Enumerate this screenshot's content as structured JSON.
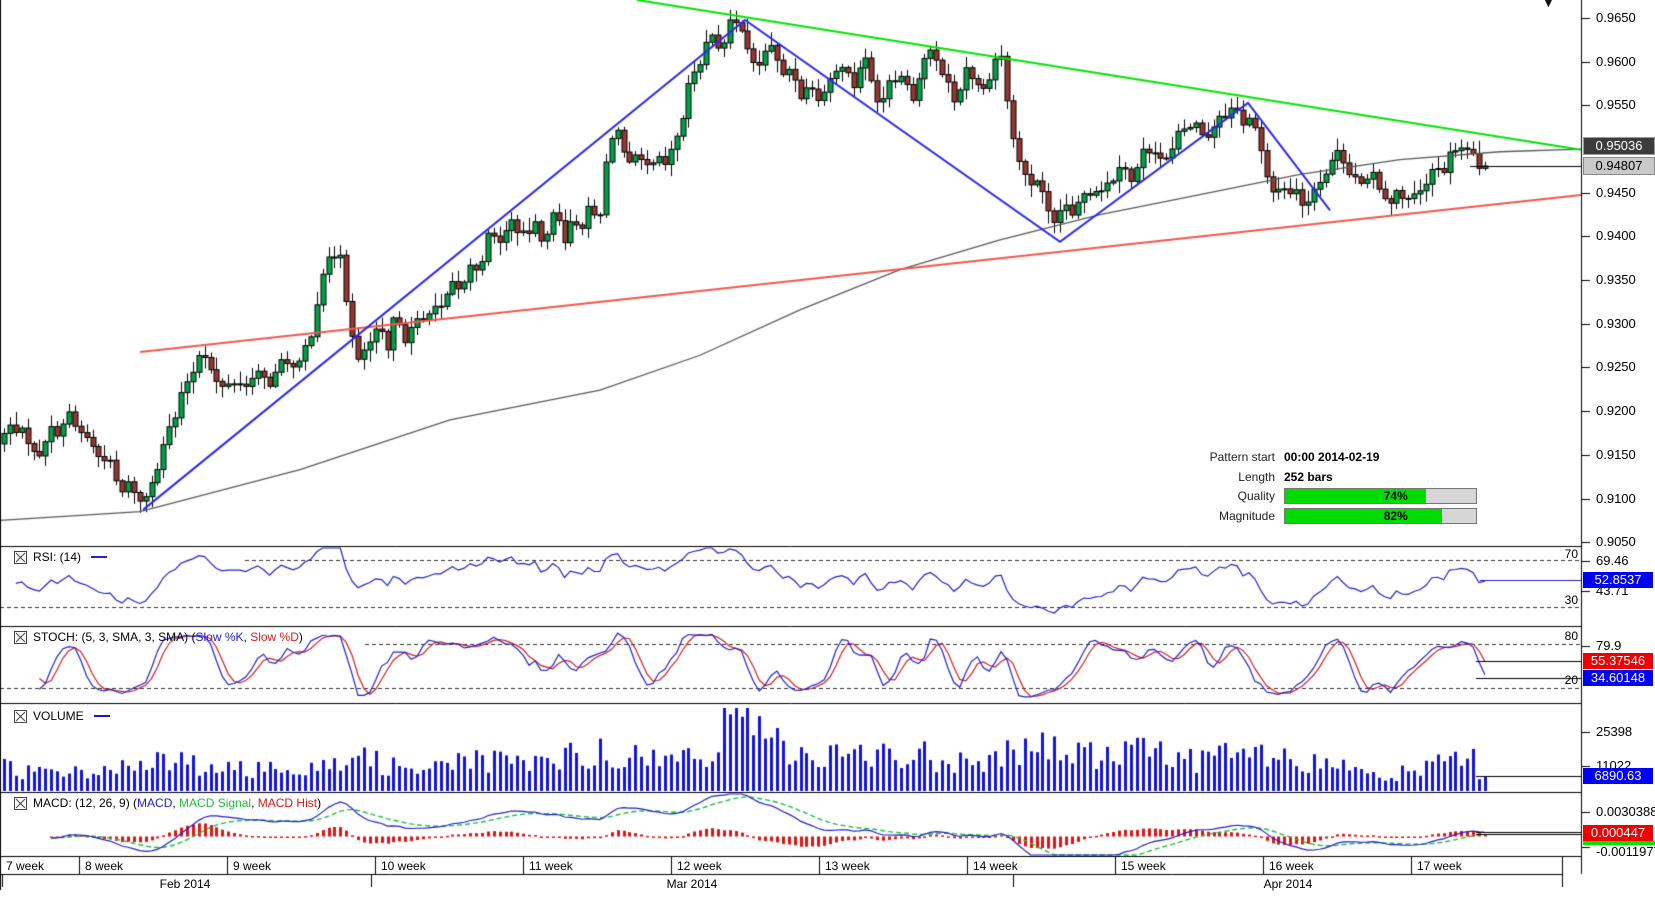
{
  "price_axis": {
    "ticks": [
      "0.9650",
      "0.9600",
      "0.9550",
      "0.9450",
      "0.9400",
      "0.9350",
      "0.9300",
      "0.9250",
      "0.9200",
      "0.9150",
      "0.9100",
      "0.9050"
    ],
    "badge_dark": "0.95036",
    "badge_light": "0.94807"
  },
  "decor": {
    "marker": "▼"
  },
  "pattern_panel": {
    "row1": {
      "label": "Pattern start",
      "value": "00:00 2014-02-19"
    },
    "row2": {
      "label": "Length",
      "value": "252 bars"
    },
    "row3": {
      "label": "Quality",
      "percent": "74%",
      "fill": 74
    },
    "row4": {
      "label": "Magnitude",
      "percent": "82%",
      "fill": 82
    }
  },
  "panels": {
    "rsi": {
      "title": "RSI: (14)",
      "levels": [
        "70",
        "30"
      ],
      "ticks": [
        "69.46",
        "43.71"
      ],
      "badge": "52.8537"
    },
    "stoch": {
      "prefix": "STOCH: (5, 3, SMA, 3, SMA) (",
      "k_label": "Slow %K",
      "sep": ", ",
      "d_label": "Slow %D",
      "suffix": ")",
      "levels": [
        "80",
        "20"
      ],
      "tick": "79.9",
      "badge_d": "55.37546",
      "badge_k": "34.60148"
    },
    "volume": {
      "title": "VOLUME",
      "ticks": [
        "25398",
        "11022"
      ],
      "badge": "6890.63"
    },
    "macd": {
      "prefix": "MACD: (12, 26, 9) (",
      "p1": "MACD",
      "sep1": ", ",
      "p2": "MACD Signal",
      "sep2": ", ",
      "p3": "MACD Hist",
      "suffix": ")",
      "ticks": [
        "0.0030388",
        "-0.0011977"
      ],
      "badge": "0.000447"
    }
  },
  "time_axis": {
    "weeks": [
      "7 week",
      "8 week",
      "9 week",
      "10 week",
      "11 week",
      "12 week",
      "13 week",
      "14 week",
      "15 week",
      "16 week",
      "17 week"
    ],
    "months": [
      "Feb 2014",
      "Mar 2014",
      "Apr 2014"
    ]
  },
  "colors": {
    "up": "#00a247",
    "down": "#953731",
    "wick": "#000000",
    "zigzag": "#2a2aee",
    "resistance": "#00e600",
    "support": "#f4574d",
    "ma": "#5a5a5a",
    "rsi": "#2222cc",
    "stoch_k": "#2222cc",
    "stoch_d": "#d42020",
    "volume": "#1414e0",
    "macd": "#2222cc",
    "macd_signal": "#1fbf3f",
    "macd_hist": "#e01414",
    "progress": "#00dc00"
  },
  "chart_data": {
    "type": "candlestick",
    "bars": 252,
    "price_axis": {
      "min": 0.905,
      "max": 0.965,
      "step": 0.005,
      "last_price": 0.94807,
      "ma_value": 0.95036
    },
    "price_anchors": [
      [
        0,
        0.917
      ],
      [
        18,
        0.9185
      ],
      [
        35,
        0.9148
      ],
      [
        50,
        0.9175
      ],
      [
        70,
        0.9192
      ],
      [
        88,
        0.9165
      ],
      [
        100,
        0.915
      ],
      [
        112,
        0.9135
      ],
      [
        122,
        0.9105
      ],
      [
        132,
        0.9118
      ],
      [
        143,
        0.9088
      ],
      [
        152,
        0.9125
      ],
      [
        163,
        0.916
      ],
      [
        178,
        0.9205
      ],
      [
        200,
        0.9272
      ],
      [
        210,
        0.925
      ],
      [
        222,
        0.9222
      ],
      [
        232,
        0.924
      ],
      [
        242,
        0.9225
      ],
      [
        255,
        0.9245
      ],
      [
        265,
        0.923
      ],
      [
        288,
        0.926
      ],
      [
        298,
        0.9245
      ],
      [
        310,
        0.929
      ],
      [
        322,
        0.9355
      ],
      [
        330,
        0.9378
      ],
      [
        340,
        0.9382
      ],
      [
        350,
        0.93
      ],
      [
        358,
        0.9252
      ],
      [
        368,
        0.928
      ],
      [
        378,
        0.929
      ],
      [
        388,
        0.927
      ],
      [
        395,
        0.9312
      ],
      [
        405,
        0.9285
      ],
      [
        412,
        0.9297
      ],
      [
        422,
        0.93
      ],
      [
        430,
        0.9325
      ],
      [
        440,
        0.931
      ],
      [
        450,
        0.9348
      ],
      [
        460,
        0.933
      ],
      [
        468,
        0.937
      ],
      [
        478,
        0.9358
      ],
      [
        488,
        0.9404
      ],
      [
        498,
        0.939
      ],
      [
        510,
        0.942
      ],
      [
        520,
        0.94
      ],
      [
        532,
        0.9411
      ],
      [
        545,
        0.9396
      ],
      [
        555,
        0.9432
      ],
      [
        565,
        0.94
      ],
      [
        572,
        0.9415
      ],
      [
        580,
        0.9412
      ],
      [
        590,
        0.9435
      ],
      [
        598,
        0.9404
      ],
      [
        608,
        0.951
      ],
      [
        618,
        0.952
      ],
      [
        628,
        0.9476
      ],
      [
        638,
        0.949
      ],
      [
        645,
        0.9481
      ],
      [
        652,
        0.9475
      ],
      [
        660,
        0.949
      ],
      [
        668,
        0.9481
      ],
      [
        678,
        0.952
      ],
      [
        688,
        0.9567
      ],
      [
        698,
        0.9601
      ],
      [
        710,
        0.963
      ],
      [
        722,
        0.9618
      ],
      [
        730,
        0.964
      ],
      [
        742,
        0.9645
      ],
      [
        752,
        0.959
      ],
      [
        762,
        0.9607
      ],
      [
        772,
        0.9618
      ],
      [
        782,
        0.9584
      ],
      [
        792,
        0.959
      ],
      [
        802,
        0.9561
      ],
      [
        812,
        0.9573
      ],
      [
        822,
        0.9561
      ],
      [
        832,
        0.9584
      ],
      [
        842,
        0.96
      ],
      [
        852,
        0.9567
      ],
      [
        862,
        0.961
      ],
      [
        872,
        0.9573
      ],
      [
        882,
        0.9555
      ],
      [
        892,
        0.9588
      ],
      [
        902,
        0.9583
      ],
      [
        912,
        0.956
      ],
      [
        922,
        0.9598
      ],
      [
        932,
        0.9612
      ],
      [
        945,
        0.958
      ],
      [
        955,
        0.9555
      ],
      [
        965,
        0.959
      ],
      [
        975,
        0.9584
      ],
      [
        985,
        0.956
      ],
      [
        992,
        0.9601
      ],
      [
        1000,
        0.9615
      ],
      [
        1008,
        0.9543
      ],
      [
        1016,
        0.9498
      ],
      [
        1026,
        0.9458
      ],
      [
        1036,
        0.9469
      ],
      [
        1046,
        0.9429
      ],
      [
        1056,
        0.9411
      ],
      [
        1064,
        0.944
      ],
      [
        1072,
        0.9423
      ],
      [
        1082,
        0.9446
      ],
      [
        1092,
        0.9458
      ],
      [
        1102,
        0.9452
      ],
      [
        1112,
        0.9469
      ],
      [
        1122,
        0.9486
      ],
      [
        1132,
        0.9463
      ],
      [
        1142,
        0.9492
      ],
      [
        1152,
        0.9509
      ],
      [
        1162,
        0.9481
      ],
      [
        1172,
        0.95
      ],
      [
        1182,
        0.952
      ],
      [
        1192,
        0.9532
      ],
      [
        1202,
        0.9515
      ],
      [
        1212,
        0.9525
      ],
      [
        1222,
        0.954
      ],
      [
        1232,
        0.9549
      ],
      [
        1242,
        0.953
      ],
      [
        1250,
        0.9542
      ],
      [
        1258,
        0.9505
      ],
      [
        1266,
        0.947
      ],
      [
        1274,
        0.9446
      ],
      [
        1282,
        0.946
      ],
      [
        1292,
        0.9452
      ],
      [
        1302,
        0.944
      ],
      [
        1312,
        0.945
      ],
      [
        1322,
        0.947
      ],
      [
        1332,
        0.9488
      ],
      [
        1342,
        0.9495
      ],
      [
        1352,
        0.947
      ],
      [
        1362,
        0.9458
      ],
      [
        1372,
        0.9469
      ],
      [
        1382,
        0.9452
      ],
      [
        1392,
        0.944
      ],
      [
        1402,
        0.9452
      ],
      [
        1412,
        0.9438
      ],
      [
        1422,
        0.9455
      ],
      [
        1432,
        0.947
      ],
      [
        1442,
        0.948
      ],
      [
        1452,
        0.9492
      ],
      [
        1460,
        0.9506
      ],
      [
        1468,
        0.9495
      ],
      [
        1476,
        0.9486
      ],
      [
        1482,
        0.94807
      ]
    ],
    "ma_anchors": [
      [
        0,
        0.9075
      ],
      [
        140,
        0.9085
      ],
      [
        300,
        0.9133
      ],
      [
        450,
        0.919
      ],
      [
        600,
        0.9224
      ],
      [
        700,
        0.9264
      ],
      [
        800,
        0.9316
      ],
      [
        900,
        0.9362
      ],
      [
        1000,
        0.9396
      ],
      [
        1100,
        0.9425
      ],
      [
        1200,
        0.9448
      ],
      [
        1300,
        0.9471
      ],
      [
        1400,
        0.9488
      ],
      [
        1500,
        0.9497
      ],
      [
        1581,
        0.95
      ]
    ],
    "volume_anchors": [
      [
        0,
        12000
      ],
      [
        60,
        9000
      ],
      [
        120,
        13000
      ],
      [
        180,
        15000
      ],
      [
        240,
        11000
      ],
      [
        300,
        14000
      ],
      [
        340,
        18000
      ],
      [
        400,
        13000
      ],
      [
        460,
        16000
      ],
      [
        520,
        14000
      ],
      [
        560,
        17000
      ],
      [
        610,
        22000
      ],
      [
        650,
        15000
      ],
      [
        700,
        19000
      ],
      [
        745,
        46000
      ],
      [
        790,
        20000
      ],
      [
        850,
        17000
      ],
      [
        900,
        21000
      ],
      [
        950,
        16000
      ],
      [
        1000,
        19000
      ],
      [
        1050,
        23000
      ],
      [
        1100,
        18000
      ],
      [
        1150,
        21000
      ],
      [
        1200,
        17000
      ],
      [
        1250,
        19000
      ],
      [
        1300,
        14000
      ],
      [
        1350,
        12000
      ],
      [
        1400,
        9000
      ],
      [
        1440,
        15000
      ],
      [
        1470,
        18000
      ],
      [
        1482,
        8000
      ]
    ],
    "zigzag": [
      [
        143,
        0.9087
      ],
      [
        745,
        0.9648
      ],
      [
        1060,
        0.9394
      ],
      [
        1248,
        0.9553
      ],
      [
        1330,
        0.943
      ]
    ],
    "trendlines": [
      {
        "name": "resistance",
        "from": [
          637,
          0.96708
        ],
        "to": [
          1581,
          0.94993
        ]
      },
      {
        "name": "support",
        "from": [
          140,
          0.92677
        ],
        "to": [
          1581,
          0.94475
        ]
      }
    ],
    "indicators": {
      "rsi": {
        "period": 14,
        "levels": [
          70,
          30
        ],
        "ticks": [
          69.46,
          43.71
        ],
        "last": 52.8537
      },
      "stoch": {
        "params": [
          5,
          3,
          3
        ],
        "method": "SMA",
        "levels": [
          80,
          20
        ],
        "tick": 79.9,
        "last_d": 55.37546,
        "last_k": 34.60148
      },
      "volume": {
        "ticks": [
          25398,
          11022
        ],
        "last": 6890.63
      },
      "macd": {
        "params": [
          12,
          26,
          9
        ],
        "ticks": [
          0.0030388,
          -0.0011977
        ],
        "last": 0.000447
      }
    }
  }
}
